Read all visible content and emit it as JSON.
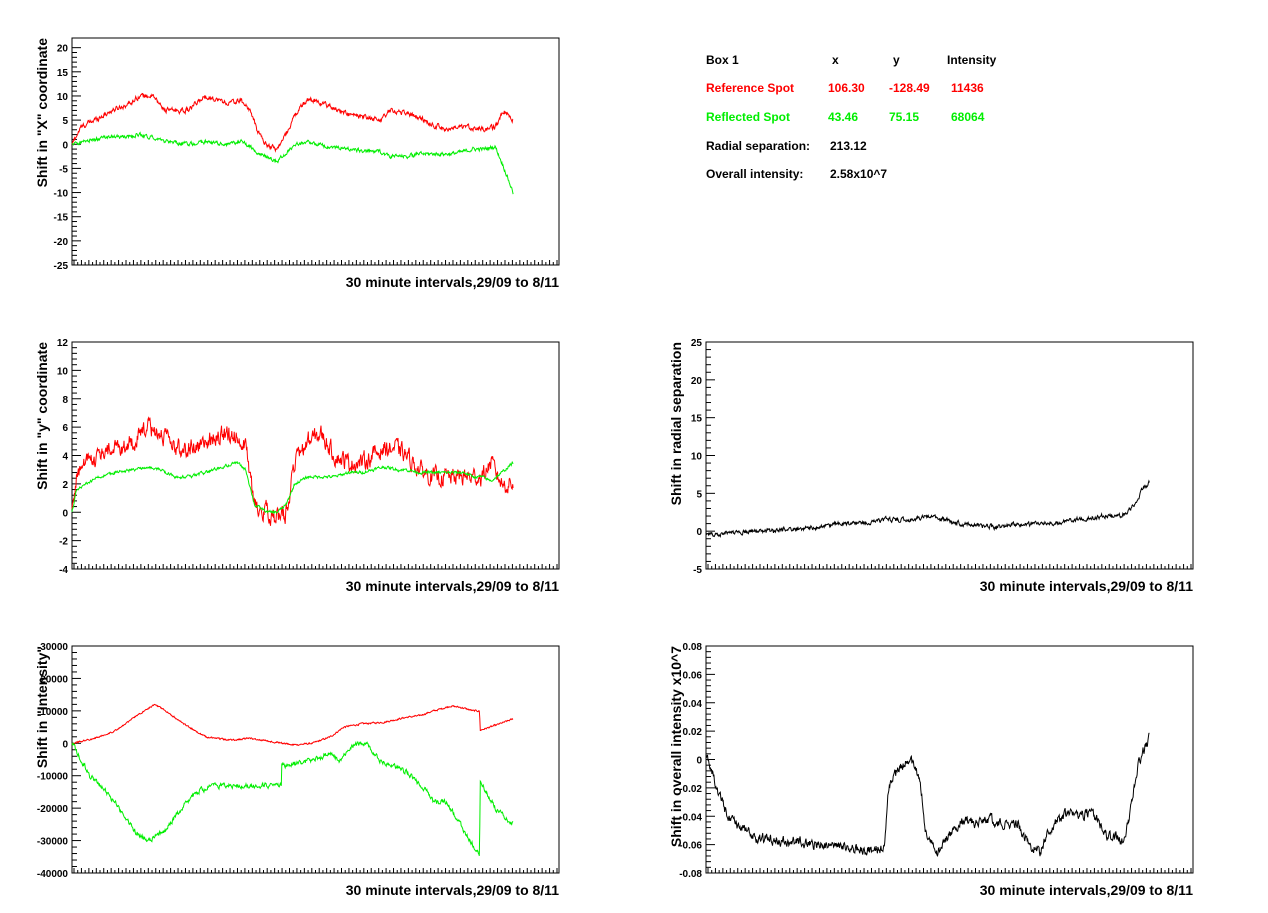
{
  "colors": {
    "reference": "#ff0000",
    "reflected": "#00ee00",
    "black": "#000000"
  },
  "info_box": {
    "rows": [
      {
        "label": "Box 1",
        "x": "x",
        "y": "y",
        "intensity": "Intensity",
        "color": "#000000"
      },
      {
        "label": "Reference Spot",
        "x": "106.30",
        "y": "-128.49",
        "intensity": "11436",
        "color": "#ff0000"
      },
      {
        "label": "Reflected Spot",
        "x": "43.46",
        "y": "75.15",
        "intensity": "68064",
        "color": "#00ee00"
      }
    ],
    "radial_label": "Radial separation:",
    "radial_value": "213.12",
    "overall_label": "Overall intensity:",
    "overall_value": "2.58x10^7"
  },
  "chart_data": [
    {
      "id": "x-shift",
      "type": "line",
      "ylabel": "Shift in \"X\" coordinate",
      "xlabel": "30 minute intervals,29/09 to 8/11",
      "ylim": [
        -25,
        22
      ],
      "yticks": [
        -25,
        -20,
        -15,
        -10,
        -5,
        0,
        5,
        10,
        15,
        20
      ],
      "tick_labels": [
        "-25",
        "-20",
        "-15",
        "-10",
        "-5",
        "0",
        "5",
        "10",
        "15",
        "20"
      ],
      "xlim": [
        0,
        2000
      ],
      "series": [
        {
          "color": "#ff0000",
          "noise": 0.6,
          "x": [
            0,
            40,
            100,
            180,
            260,
            300,
            360,
            420,
            520,
            600,
            700,
            760,
            800,
            830,
            870,
            920,
            960,
            1000,
            1060,
            1150,
            1250,
            1320,
            1380,
            1430,
            1500,
            1560,
            1620,
            1700,
            1760,
            1800,
            1850,
            1900,
            1940,
            1980
          ],
          "y": [
            0,
            3.5,
            5,
            7,
            8.5,
            10,
            10,
            7,
            7,
            10,
            8.5,
            9,
            7,
            3,
            0,
            -1,
            2,
            6,
            9.5,
            8,
            6,
            5.5,
            5,
            7,
            6.5,
            5.5,
            4,
            3,
            3.5,
            3.5,
            3,
            3.5,
            7,
            5
          ]
        },
        {
          "color": "#00ee00",
          "noise": 0.45,
          "x": [
            0,
            40,
            100,
            180,
            260,
            300,
            360,
            420,
            520,
            600,
            700,
            760,
            800,
            830,
            870,
            920,
            960,
            1000,
            1060,
            1150,
            1250,
            1320,
            1380,
            1430,
            1500,
            1560,
            1620,
            1700,
            1760,
            1800,
            1850,
            1900,
            1940,
            1980
          ],
          "y": [
            0,
            0.5,
            1,
            1.5,
            1.5,
            2,
            1.5,
            0.5,
            0,
            0.5,
            0,
            0.5,
            -0.5,
            -2,
            -2.5,
            -3.5,
            -2,
            0,
            0.5,
            -0.5,
            -1,
            -1.5,
            -1.5,
            -2.5,
            -2.5,
            -2,
            -2,
            -2,
            -1.5,
            -1,
            -1,
            -0.5,
            -5,
            -10
          ]
        }
      ]
    },
    {
      "id": "y-shift",
      "type": "line",
      "ylabel": "Shift in \"y\" coordinate",
      "xlabel": "30 minute intervals,29/09 to 8/11",
      "ylim": [
        -4,
        12
      ],
      "yticks": [
        -4,
        -2,
        0,
        2,
        4,
        6,
        8,
        10,
        12
      ],
      "tick_labels": [
        "-4",
        "-2",
        "0",
        "2",
        "4",
        "6",
        "8",
        "10",
        "12"
      ],
      "xlim": [
        0,
        2000
      ],
      "series": [
        {
          "color": "#ff0000",
          "noise": 0.7,
          "x": [
            0,
            20,
            60,
            120,
            200,
            280,
            340,
            400,
            460,
            520,
            600,
            680,
            740,
            780,
            820,
            880,
            920,
            960,
            1000,
            1060,
            1120,
            1180,
            1240,
            1300,
            1350,
            1400,
            1460,
            1500,
            1560,
            1620,
            1680,
            1720,
            1760,
            1800,
            1840,
            1880,
            1930,
            1980
          ],
          "y": [
            0,
            2.5,
            3.5,
            4,
            4.5,
            5,
            6,
            5.5,
            4.5,
            4.5,
            5,
            5.5,
            5.5,
            4.5,
            0.5,
            0,
            -0.5,
            0,
            3.5,
            5,
            5.5,
            4,
            3.5,
            3.5,
            4,
            4.5,
            4.5,
            4,
            3,
            2.5,
            2.5,
            2.5,
            2.5,
            2.5,
            2.5,
            3.5,
            2,
            2
          ]
        },
        {
          "color": "#00ee00",
          "noise": 0.12,
          "x": [
            0,
            20,
            60,
            120,
            200,
            280,
            340,
            400,
            460,
            520,
            600,
            680,
            740,
            780,
            820,
            880,
            920,
            960,
            1000,
            1060,
            1120,
            1180,
            1240,
            1300,
            1350,
            1400,
            1460,
            1500,
            1560,
            1620,
            1680,
            1720,
            1760,
            1800,
            1840,
            1880,
            1930,
            1980
          ],
          "y": [
            0,
            1.5,
            2,
            2.5,
            2.8,
            3,
            3.2,
            3,
            2.5,
            2.5,
            2.8,
            3.2,
            3.5,
            3,
            0.5,
            0,
            0,
            0.5,
            2,
            2.5,
            2.5,
            2.5,
            2.8,
            2.8,
            3,
            3.2,
            3,
            3,
            2.8,
            2.8,
            2.8,
            2.8,
            2.8,
            2.5,
            2.5,
            2.2,
            2.8,
            3.5
          ]
        }
      ]
    },
    {
      "id": "intensity-shift",
      "type": "line",
      "ylabel": "Shift in \"Intensity\"",
      "xlabel": "30 minute intervals,29/09 to 8/11",
      "ylim": [
        -40000,
        30000
      ],
      "yticks": [
        -40000,
        -30000,
        -20000,
        -10000,
        0,
        10000,
        20000,
        30000
      ],
      "tick_labels": [
        "-40000",
        "-30000",
        "-20000",
        "-10000",
        "0",
        "10000",
        "20000",
        "30000"
      ],
      "xlim": [
        0,
        2000
      ],
      "series": [
        {
          "color": "#ff0000",
          "noise": 300,
          "x": [
            0,
            100,
            200,
            300,
            370,
            420,
            500,
            600,
            700,
            800,
            900,
            1000,
            1080,
            1160,
            1220,
            1300,
            1400,
            1500,
            1560,
            1600,
            1650,
            1700,
            1750,
            1800,
            1830,
            1831,
            1900,
            1980
          ],
          "y": [
            0,
            1500,
            4000,
            9000,
            12000,
            10000,
            6000,
            2000,
            1000,
            1500,
            500,
            -500,
            0,
            2000,
            5000,
            6000,
            6500,
            8000,
            8500,
            9500,
            10500,
            11500,
            11000,
            10000,
            10000,
            4000,
            5500,
            7500
          ]
        },
        {
          "color": "#00ee00",
          "noise": 900,
          "x": [
            0,
            40,
            80,
            140,
            200,
            280,
            340,
            420,
            480,
            560,
            640,
            740,
            940,
            941,
            1100,
            1150,
            1200,
            1260,
            1320,
            1380,
            1500,
            1550,
            1600,
            1620,
            1680,
            1760,
            1830,
            1831,
            1900,
            1980
          ],
          "y": [
            0,
            -5000,
            -10000,
            -14000,
            -19000,
            -27000,
            -30000,
            -27000,
            -21000,
            -15000,
            -13000,
            -13000,
            -13000,
            -7000,
            -5000,
            -3000,
            -5000,
            -1000,
            0,
            -5000,
            -9000,
            -12000,
            -15000,
            -18000,
            -18000,
            -27000,
            -35000,
            -12000,
            -20000,
            -25000
          ]
        }
      ]
    },
    {
      "id": "radial-shift",
      "type": "line",
      "ylabel": "Shift in radial separation",
      "xlabel": "30 minute intervals,29/09 to 8/11",
      "ylim": [
        -5,
        25
      ],
      "yticks": [
        -5,
        0,
        5,
        10,
        15,
        20,
        25
      ],
      "tick_labels": [
        "-5",
        "0",
        "5",
        "10",
        "15",
        "20",
        "25"
      ],
      "xlim": [
        0,
        2000
      ],
      "series": [
        {
          "color": "#000000",
          "noise": 0.35,
          "x": [
            0,
            100,
            200,
            300,
            400,
            500,
            600,
            700,
            800,
            900,
            1000,
            1060,
            1120,
            1200,
            1300,
            1400,
            1500,
            1600,
            1660,
            1720,
            1780,
            1840,
            1880,
            1920,
            1960,
            1990
          ],
          "y": [
            -0.5,
            -0.2,
            0,
            0,
            0.3,
            0.5,
            1,
            1,
            1.5,
            1.5,
            2,
            1.5,
            1.2,
            0.8,
            0.5,
            0.8,
            1,
            1.2,
            1.5,
            1.8,
            2,
            2,
            2.2,
            3.5,
            5.5,
            6.5
          ]
        }
      ]
    },
    {
      "id": "overall-intensity-shift",
      "type": "line",
      "ylabel": "Shift in overall intensity x10^7",
      "xlabel": "30 minute intervals,29/09 to 8/11",
      "ylim": [
        -0.08,
        0.08
      ],
      "yticks": [
        -0.08,
        -0.06,
        -0.04,
        -0.02,
        0,
        0.02,
        0.04,
        0.06,
        0.08
      ],
      "tick_labels": [
        "-0.08",
        "-0.06",
        "-0.04",
        "-0.02",
        "0",
        "0.02",
        "0.04",
        "0.06",
        "0.08"
      ],
      "xlim": [
        0,
        2000
      ],
      "series": [
        {
          "color": "#000000",
          "noise": 0.004,
          "x": [
            0,
            30,
            60,
            100,
            160,
            240,
            320,
            400,
            500,
            600,
            700,
            800,
            820,
            870,
            920,
            960,
            990,
            1040,
            1100,
            1150,
            1200,
            1260,
            1330,
            1400,
            1450,
            1500,
            1540,
            1600,
            1660,
            1720,
            1760,
            1800,
            1840,
            1880,
            1930,
            1960,
            1990
          ],
          "y": [
            0.005,
            -0.01,
            -0.025,
            -0.04,
            -0.05,
            -0.055,
            -0.058,
            -0.058,
            -0.06,
            -0.062,
            -0.064,
            -0.062,
            -0.02,
            -0.005,
            0,
            -0.015,
            -0.055,
            -0.065,
            -0.05,
            -0.042,
            -0.045,
            -0.042,
            -0.045,
            -0.045,
            -0.06,
            -0.065,
            -0.05,
            -0.04,
            -0.038,
            -0.038,
            -0.042,
            -0.055,
            -0.055,
            -0.058,
            -0.01,
            0.005,
            0.015
          ]
        }
      ]
    }
  ]
}
